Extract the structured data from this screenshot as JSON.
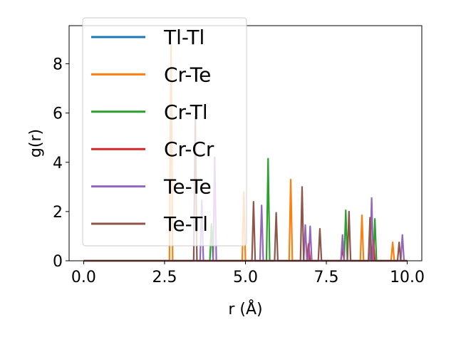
{
  "chart_data": {
    "type": "line",
    "xlabel": "r (Å)",
    "ylabel": "g(r)",
    "xlim": [
      -0.45,
      10.45
    ],
    "ylim": [
      0,
      9.55
    ],
    "xticks": [
      0.0,
      2.5,
      5.0,
      7.5,
      10.0
    ],
    "xtick_labels": [
      "0.0",
      "2.5",
      "5.0",
      "7.5",
      "10.0"
    ],
    "yticks": [
      0,
      2,
      4,
      6,
      8
    ],
    "ytick_labels": [
      "0",
      "2",
      "4",
      "6",
      "8"
    ],
    "grid": false,
    "legend_position": "upper-left",
    "x_step": 0.05,
    "series": [
      {
        "name": "Tl-Tl",
        "color": "#1f77b4",
        "peaks": []
      },
      {
        "name": "Cr-Te",
        "color": "#ff7f0e",
        "peaks": [
          [
            2.72,
            8.8
          ],
          [
            4.95,
            2.8
          ],
          [
            6.4,
            3.3
          ],
          [
            6.95,
            0.7
          ],
          [
            8.6,
            1.85
          ],
          [
            9.55,
            0.75
          ]
        ]
      },
      {
        "name": "Cr-Tl",
        "color": "#2ca02c",
        "peaks": [
          [
            3.95,
            1.5
          ],
          [
            5.7,
            4.15
          ],
          [
            8.1,
            2.05
          ],
          [
            9.0,
            1.7
          ]
        ]
      },
      {
        "name": "Cr-Cr",
        "color": "#d62728",
        "peaks": [
          [
            6.95,
            0.65
          ],
          [
            8.0,
            0.5
          ],
          [
            8.95,
            0.85
          ]
        ]
      },
      {
        "name": "Te-Te",
        "color": "#9467bd",
        "peaks": [
          [
            3.65,
            2.45
          ],
          [
            4.05,
            4.2
          ],
          [
            5.5,
            2.25
          ],
          [
            6.85,
            1.45
          ],
          [
            7.0,
            1.4
          ],
          [
            8.0,
            1.05
          ],
          [
            8.9,
            2.55
          ],
          [
            9.85,
            1.05
          ]
        ]
      },
      {
        "name": "Te-Tl",
        "color": "#8c564b",
        "peaks": [
          [
            3.45,
            5.85
          ],
          [
            5.25,
            2.4
          ],
          [
            5.95,
            1.95
          ],
          [
            6.75,
            3.0
          ],
          [
            7.3,
            1.3
          ],
          [
            8.2,
            2.0
          ],
          [
            8.85,
            1.75
          ],
          [
            9.75,
            0.75
          ]
        ]
      }
    ]
  }
}
